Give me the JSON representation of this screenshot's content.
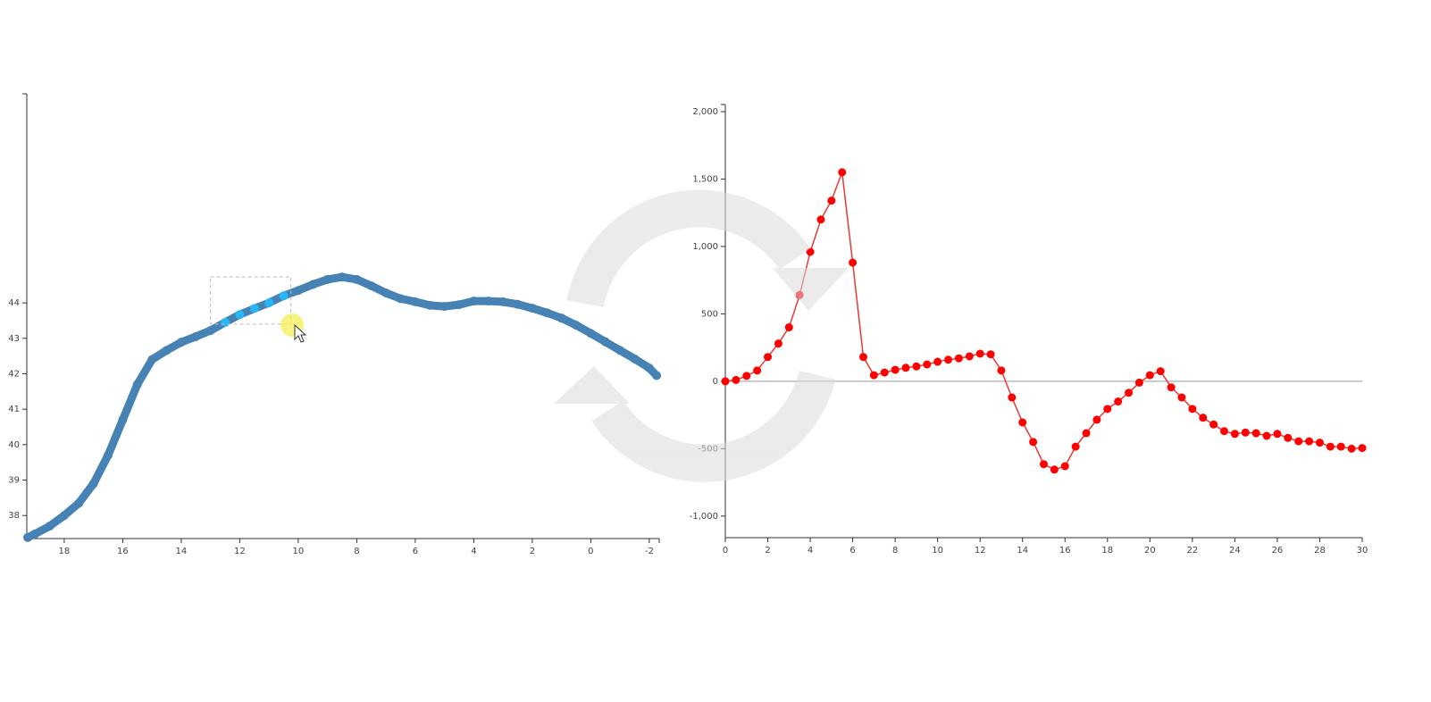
{
  "chart_data": [
    {
      "type": "scatter",
      "color": "#4682b4",
      "x": [
        19.25,
        19.0,
        18.5,
        18.0,
        17.5,
        17.0,
        16.5,
        16.0,
        15.5,
        15.0,
        14.5,
        14.0,
        13.5,
        13.0,
        12.5,
        12.0,
        11.5,
        11.0,
        10.5,
        10.0,
        9.5,
        9.0,
        8.5,
        8.0,
        7.5,
        7.0,
        6.5,
        6.0,
        5.5,
        5.0,
        4.5,
        4.0,
        3.5,
        3.0,
        2.5,
        2.0,
        1.5,
        1.0,
        0.5,
        0.0,
        -0.5,
        -1.0,
        -1.5,
        -2.0,
        -2.25
      ],
      "values": [
        37.38,
        37.48,
        37.7,
        38.0,
        38.35,
        38.9,
        39.7,
        40.7,
        41.7,
        42.4,
        42.66,
        42.89,
        43.05,
        43.22,
        43.45,
        43.67,
        43.84,
        44.0,
        44.2,
        44.35,
        44.52,
        44.66,
        44.73,
        44.66,
        44.48,
        44.28,
        44.12,
        44.03,
        43.93,
        43.9,
        43.95,
        44.05,
        44.05,
        44.03,
        43.96,
        43.85,
        43.72,
        43.57,
        43.37,
        43.14,
        42.9,
        42.66,
        42.42,
        42.16,
        41.95
      ],
      "xlim": [
        19.28,
        -2.34
      ],
      "ylim": [
        37.35,
        49.9
      ],
      "xticks": [
        18,
        16,
        14,
        12,
        10,
        8,
        6,
        4,
        2,
        0,
        -2
      ],
      "yticks": [
        38,
        39,
        40,
        41,
        42,
        43,
        44
      ],
      "selection": {
        "xlim": [
          13.0,
          10.25
        ],
        "ylim": [
          43.4,
          44.73
        ],
        "color": "#29b6f6"
      }
    },
    {
      "type": "line",
      "color": "#ff0000",
      "line_color": "#e53935",
      "zero_line": true,
      "x": [
        0,
        0.5,
        1,
        1.5,
        2,
        2.5,
        3,
        3.5,
        4,
        4.5,
        5,
        5.5,
        6,
        6.5,
        7,
        7.5,
        8,
        8.5,
        9,
        9.5,
        10,
        10.5,
        11,
        11.5,
        12,
        12.5,
        13,
        13.5,
        14,
        14.5,
        15,
        15.5,
        16,
        16.5,
        17,
        17.5,
        18,
        18.5,
        19,
        19.5,
        20,
        20.5,
        21,
        21.5,
        22,
        22.5,
        23,
        23.5,
        24,
        24.5,
        25,
        25.5,
        26,
        26.5,
        27,
        27.5,
        28,
        28.5,
        29,
        29.5,
        30
      ],
      "values": [
        0,
        10,
        40,
        80,
        180,
        280,
        400,
        640,
        960,
        1200,
        1340,
        1550,
        880,
        180,
        45,
        65,
        85,
        100,
        110,
        125,
        145,
        160,
        170,
        185,
        205,
        200,
        80,
        -120,
        -305,
        -450,
        -615,
        -655,
        -630,
        -485,
        -385,
        -285,
        -205,
        -150,
        -85,
        -10,
        45,
        75,
        -45,
        -120,
        -205,
        -270,
        -320,
        -370,
        -390,
        -380,
        -385,
        -405,
        -390,
        -420,
        -445,
        -445,
        -455,
        -485,
        -485,
        -500,
        -495
      ],
      "xlim": [
        0,
        30
      ],
      "ylim": [
        -1160,
        2053
      ],
      "xticks": [
        0,
        2,
        4,
        6,
        8,
        10,
        12,
        14,
        16,
        18,
        20,
        22,
        24,
        26,
        28,
        30
      ],
      "yticks": [
        {
          "value": -1000,
          "label": "-1,000"
        },
        -500,
        0,
        500,
        {
          "value": 1000,
          "label": "1,000"
        },
        {
          "value": 1500,
          "label": "1,500"
        },
        {
          "value": 2000,
          "label": "2,000"
        }
      ]
    }
  ]
}
